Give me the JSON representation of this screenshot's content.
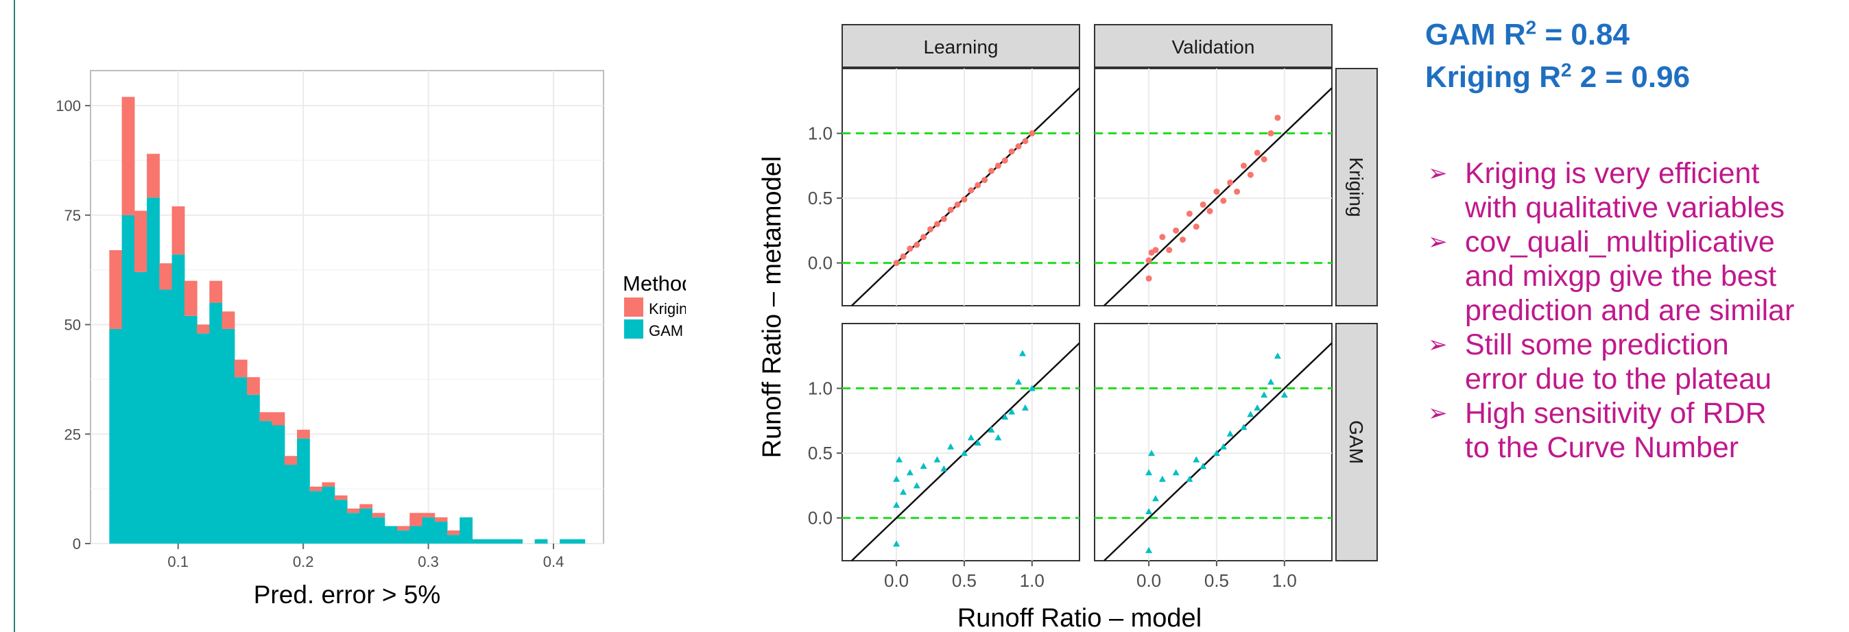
{
  "chart_data": [
    {
      "type": "bar",
      "subtype": "stacked-histogram",
      "xlabel": "Pred. error > 5%",
      "ylabel": "",
      "xlim": [
        0.03,
        0.44
      ],
      "ylim": [
        0,
        108
      ],
      "xticks": [
        "0.1",
        "0.2",
        "0.3",
        "0.4"
      ],
      "yticks": [
        "0",
        "25",
        "50",
        "75",
        "100"
      ],
      "grid": true,
      "legend": {
        "title": "Method",
        "position": "right",
        "entries": [
          "Kriging",
          "GAM"
        ]
      },
      "bin_start": 0.045,
      "bin_width": 0.01,
      "series": [
        {
          "name": "GAM",
          "color": "#00bfc4",
          "values": [
            49,
            75,
            62,
            79,
            58,
            66,
            52,
            48,
            55,
            49,
            38,
            34,
            28,
            27,
            18,
            24,
            12,
            13,
            10,
            7,
            8,
            6,
            4,
            3,
            4,
            6,
            5,
            2,
            6,
            1,
            1,
            1,
            1,
            0,
            1,
            0,
            1,
            1
          ]
        },
        {
          "name": "Kriging",
          "color": "#f8766d",
          "values": [
            18,
            27,
            14,
            10,
            6,
            11,
            8,
            2,
            5,
            4,
            4,
            4,
            2,
            3,
            2,
            2,
            1,
            1,
            1,
            1,
            1,
            1,
            0,
            1,
            3,
            1,
            1,
            1,
            0,
            0,
            0,
            0,
            0,
            0,
            0,
            0,
            0,
            0
          ]
        }
      ]
    },
    {
      "type": "scatter",
      "subtype": "facet-grid",
      "xlabel": "Runoff Ratio – model",
      "ylabel": "Runoff Ratio – metamodel",
      "xlim": [
        -0.4,
        1.35
      ],
      "ylim": [
        -0.33,
        1.5
      ],
      "xticks": [
        "0.0",
        "0.5",
        "1.0"
      ],
      "yticks": [
        "0.0",
        "0.5",
        "1.0"
      ],
      "col_facets": [
        "Learning",
        "Validation"
      ],
      "row_facets": [
        "Kriging",
        "GAM"
      ],
      "reference_lines": {
        "identity": "y = x",
        "horizontal": [
          0,
          1
        ],
        "horizontal_color": "#22dd22"
      },
      "panels": [
        {
          "col": "Learning",
          "row": "Kriging",
          "color": "#f8766d",
          "marker": "circle",
          "points": [
            [
              0.0,
              0.0
            ],
            [
              0.05,
              0.05
            ],
            [
              0.1,
              0.11
            ],
            [
              0.15,
              0.14
            ],
            [
              0.2,
              0.2
            ],
            [
              0.25,
              0.26
            ],
            [
              0.3,
              0.3
            ],
            [
              0.35,
              0.34
            ],
            [
              0.4,
              0.41
            ],
            [
              0.45,
              0.45
            ],
            [
              0.5,
              0.49
            ],
            [
              0.55,
              0.56
            ],
            [
              0.6,
              0.6
            ],
            [
              0.65,
              0.64
            ],
            [
              0.7,
              0.71
            ],
            [
              0.75,
              0.75
            ],
            [
              0.8,
              0.79
            ],
            [
              0.85,
              0.86
            ],
            [
              0.9,
              0.9
            ],
            [
              0.95,
              0.94
            ],
            [
              1.0,
              1.0
            ]
          ]
        },
        {
          "col": "Validation",
          "row": "Kriging",
          "color": "#f8766d",
          "marker": "circle",
          "points": [
            [
              0.0,
              -0.12
            ],
            [
              0.0,
              0.02
            ],
            [
              0.02,
              0.08
            ],
            [
              0.05,
              0.1
            ],
            [
              0.1,
              0.2
            ],
            [
              0.15,
              0.1
            ],
            [
              0.2,
              0.25
            ],
            [
              0.25,
              0.18
            ],
            [
              0.3,
              0.38
            ],
            [
              0.35,
              0.28
            ],
            [
              0.4,
              0.45
            ],
            [
              0.45,
              0.4
            ],
            [
              0.5,
              0.55
            ],
            [
              0.55,
              0.48
            ],
            [
              0.6,
              0.62
            ],
            [
              0.65,
              0.55
            ],
            [
              0.7,
              0.75
            ],
            [
              0.75,
              0.68
            ],
            [
              0.8,
              0.85
            ],
            [
              0.85,
              0.8
            ],
            [
              0.9,
              1.0
            ],
            [
              0.95,
              1.12
            ]
          ]
        },
        {
          "col": "Learning",
          "row": "GAM",
          "color": "#00bfc4",
          "marker": "triangle",
          "points": [
            [
              0.0,
              -0.2
            ],
            [
              0.0,
              0.1
            ],
            [
              0.0,
              0.3
            ],
            [
              0.02,
              0.45
            ],
            [
              0.05,
              0.2
            ],
            [
              0.1,
              0.35
            ],
            [
              0.15,
              0.25
            ],
            [
              0.2,
              0.4
            ],
            [
              0.3,
              0.45
            ],
            [
              0.35,
              0.38
            ],
            [
              0.4,
              0.55
            ],
            [
              0.5,
              0.5
            ],
            [
              0.55,
              0.62
            ],
            [
              0.6,
              0.58
            ],
            [
              0.7,
              0.68
            ],
            [
              0.75,
              0.62
            ],
            [
              0.8,
              0.78
            ],
            [
              0.85,
              0.82
            ],
            [
              0.9,
              1.05
            ],
            [
              0.93,
              1.27
            ],
            [
              0.95,
              0.85
            ],
            [
              1.0,
              1.0
            ]
          ]
        },
        {
          "col": "Validation",
          "row": "GAM",
          "color": "#00bfc4",
          "marker": "triangle",
          "points": [
            [
              0.0,
              -0.25
            ],
            [
              0.0,
              0.05
            ],
            [
              0.0,
              0.35
            ],
            [
              0.02,
              0.5
            ],
            [
              0.05,
              0.15
            ],
            [
              0.1,
              0.3
            ],
            [
              0.2,
              0.35
            ],
            [
              0.3,
              0.3
            ],
            [
              0.35,
              0.45
            ],
            [
              0.4,
              0.4
            ],
            [
              0.5,
              0.5
            ],
            [
              0.55,
              0.55
            ],
            [
              0.6,
              0.65
            ],
            [
              0.7,
              0.7
            ],
            [
              0.75,
              0.8
            ],
            [
              0.8,
              0.85
            ],
            [
              0.85,
              0.95
            ],
            [
              0.9,
              1.05
            ],
            [
              0.95,
              1.25
            ],
            [
              1.0,
              0.95
            ]
          ]
        }
      ]
    }
  ],
  "stats": {
    "gam_prefix": "GAM  R",
    "gam_sup": "2",
    "gam_suffix": " = 0.84",
    "kriging_prefix": "Kriging R",
    "kriging_sup": "2",
    "kriging_suffix": " 2 = 0.96"
  },
  "bullets": [
    {
      "lines": [
        "Kriging is very efficient",
        "with qualitative variables"
      ]
    },
    {
      "lines": [
        "cov_quali_multiplicative",
        "and mixgp give the best",
        "prediction and are similar"
      ]
    },
    {
      "lines": [
        "Still some prediction",
        "error due to the plateau"
      ]
    },
    {
      "lines": [
        "High sensitivity of RDR",
        "to the Curve Number"
      ]
    }
  ],
  "icons": {
    "bullet_arrow": "arrow-bullet-icon"
  }
}
